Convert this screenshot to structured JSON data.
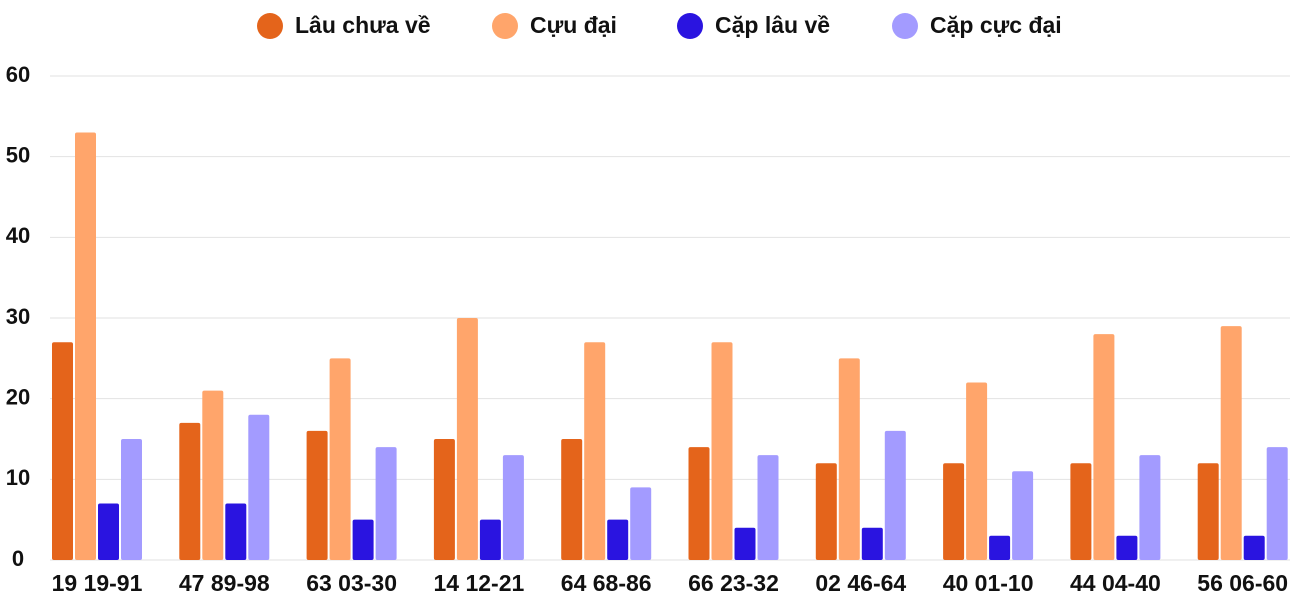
{
  "chart_data": {
    "type": "bar",
    "categories": [
      "19 19-91",
      "47 89-98",
      "63 03-30",
      "14 12-21",
      "64 68-86",
      "66 23-32",
      "02 46-64",
      "40 01-10",
      "44 04-40",
      "56 06-60"
    ],
    "series": [
      {
        "name": "Lâu chưa về",
        "color": "#e4641b",
        "values": [
          27,
          17,
          16,
          15,
          15,
          14,
          12,
          12,
          12,
          12
        ]
      },
      {
        "name": "Cựu đại",
        "color": "#ffa56b",
        "values": [
          53,
          21,
          25,
          30,
          27,
          27,
          25,
          22,
          28,
          29
        ]
      },
      {
        "name": "Cặp lâu về",
        "color": "#2a14e0",
        "values": [
          7,
          7,
          5,
          5,
          5,
          4,
          4,
          3,
          3,
          3
        ]
      },
      {
        "name": "Cặp cực đại",
        "color": "#a39bff",
        "values": [
          15,
          18,
          14,
          13,
          9,
          13,
          16,
          11,
          13,
          14
        ]
      }
    ],
    "ylim": [
      0,
      60
    ],
    "yticks": [
      0,
      10,
      20,
      30,
      40,
      50,
      60
    ],
    "grid": true,
    "legend": "top"
  }
}
